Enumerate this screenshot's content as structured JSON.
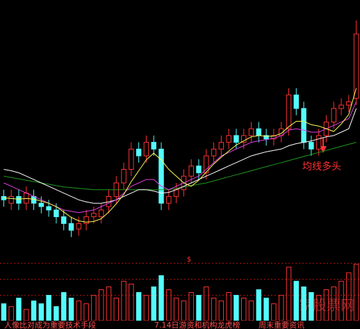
{
  "chart_data": {
    "type": "candlestick",
    "open": [
      9,
      8,
      9,
      8,
      9,
      8,
      7.5,
      7,
      6,
      5,
      4.2,
      5,
      6,
      6,
      7.5,
      9,
      11,
      13,
      16,
      15,
      17,
      16,
      8,
      9,
      10,
      12,
      13.5,
      12.5,
      15,
      16,
      17,
      18,
      17,
      18,
      19,
      18,
      17.5,
      18,
      19,
      24,
      22,
      17,
      16,
      18,
      20,
      22,
      22.5,
      23.5
    ],
    "high": [
      10,
      10,
      10,
      10.5,
      10,
      9,
      8.5,
      8,
      7,
      6,
      6,
      7,
      7.5,
      8,
      10,
      12,
      14,
      17,
      17,
      18,
      18,
      17,
      10,
      11,
      13,
      14.5,
      14.5,
      16,
      17,
      18,
      19,
      19,
      19,
      20,
      20,
      19,
      19,
      20,
      25,
      25,
      23,
      18,
      19,
      21,
      23,
      23.5,
      24,
      35
    ],
    "low": [
      7.5,
      7,
      7,
      7,
      7,
      6.5,
      6,
      5,
      4,
      3,
      3.2,
      4,
      5,
      5,
      6.5,
      8,
      10,
      12,
      14,
      14,
      15,
      7,
      7,
      8,
      9,
      11,
      11.5,
      11.5,
      14,
      15,
      16,
      16,
      16,
      17,
      17,
      16.5,
      16.5,
      17,
      18,
      21,
      16,
      15,
      15,
      17,
      19,
      21,
      21.5,
      22.5
    ],
    "close": [
      8.5,
      9,
      8,
      9.5,
      8,
      7.5,
      7,
      6,
      5,
      4,
      5,
      6,
      6.5,
      7,
      9,
      11,
      13,
      16,
      15,
      17,
      16,
      8,
      9,
      10,
      12,
      13.5,
      12.5,
      15,
      16,
      17,
      18,
      17,
      18,
      19,
      18,
      17.5,
      18,
      19,
      24,
      22,
      17,
      16,
      18,
      20,
      22,
      22.5,
      23,
      33
    ],
    "volume": [
      30,
      25,
      40,
      20,
      35,
      30,
      45,
      25,
      50,
      40,
      35,
      30,
      45,
      55,
      60,
      40,
      70,
      65,
      50,
      45,
      60,
      80,
      55,
      40,
      35,
      50,
      45,
      60,
      40,
      35,
      50,
      45,
      40,
      35,
      55,
      40,
      30,
      45,
      95,
      70,
      60,
      50,
      45,
      55,
      60,
      70,
      85,
      100
    ],
    "ylim": [
      0,
      37
    ],
    "volume_ylim": [
      0,
      100
    ],
    "up_color": "#ff3232",
    "down_color": "#54fcfc",
    "lines": [
      {
        "color": "#1f9a1f",
        "values": [
          12,
          11.8,
          11.6,
          11.4,
          11.2,
          11,
          10.8,
          10.6,
          10.4,
          10.3,
          10.2,
          10.1,
          10,
          10,
          10,
          10,
          10,
          10,
          10,
          10,
          10,
          10,
          10,
          10.2,
          10.4,
          10.6,
          10.8,
          11,
          11.3,
          11.6,
          11.9,
          12.2,
          12.5,
          12.8,
          13.1,
          13.4,
          13.7,
          14,
          14.3,
          14.6,
          14.9,
          15.2,
          15.5,
          15.8,
          16.1,
          16.4,
          16.7,
          17
        ]
      },
      {
        "color": "#ffffff",
        "values": [
          13,
          12.8,
          12.5,
          12,
          11.5,
          11,
          10.5,
          10,
          9.5,
          9,
          8.5,
          8.2,
          8,
          8,
          8.2,
          8.5,
          9,
          9.5,
          10,
          10,
          9.8,
          9.5,
          9.6,
          10,
          10.5,
          11,
          11.5,
          12,
          12.5,
          13,
          13.5,
          14,
          14.5,
          15,
          15.3,
          15.6,
          15.8,
          16,
          16.5,
          16.8,
          17,
          17.2,
          17.5,
          17.8,
          18,
          18.5,
          19,
          22
        ]
      },
      {
        "color": "#e040e0",
        "values": [
          11,
          10.5,
          10,
          9.5,
          9,
          8.5,
          8,
          7.5,
          7,
          6.8,
          6.6,
          6.8,
          7,
          7.5,
          8,
          8.5,
          9.5,
          10.5,
          11,
          11.5,
          11.5,
          10.5,
          10,
          10.5,
          11,
          11.5,
          12,
          13,
          14,
          15,
          15.5,
          16,
          16.5,
          17,
          17.2,
          17.4,
          17.6,
          18,
          18.8,
          19,
          18.8,
          18.5,
          18.5,
          19,
          19.5,
          20,
          20.5,
          23
        ]
      },
      {
        "color": "#ffff55",
        "values": [
          8.8,
          8.7,
          8.6,
          8.7,
          8.6,
          8.3,
          8,
          7.5,
          6.7,
          5.9,
          5.4,
          5.2,
          5.3,
          5.7,
          6.7,
          7.9,
          9.3,
          11.2,
          12.8,
          14.4,
          15.4,
          14.4,
          13,
          12,
          11,
          10.5,
          11.4,
          12.6,
          13.8,
          14.8,
          15.7,
          16.6,
          17.2,
          17.8,
          18,
          17.9,
          17.9,
          18.3,
          19.3,
          20.1,
          20.1,
          19.6,
          19.4,
          19,
          18.6,
          19.7,
          21.1,
          25
        ]
      }
    ],
    "annotation": "均线多头",
    "marker": "$"
  },
  "news_ticker": [
    "人像比对成为重要技术手段",
    "7.14日游资和机构龙虎榜",
    "周末重要资讯"
  ],
  "watermark": "家股票网"
}
